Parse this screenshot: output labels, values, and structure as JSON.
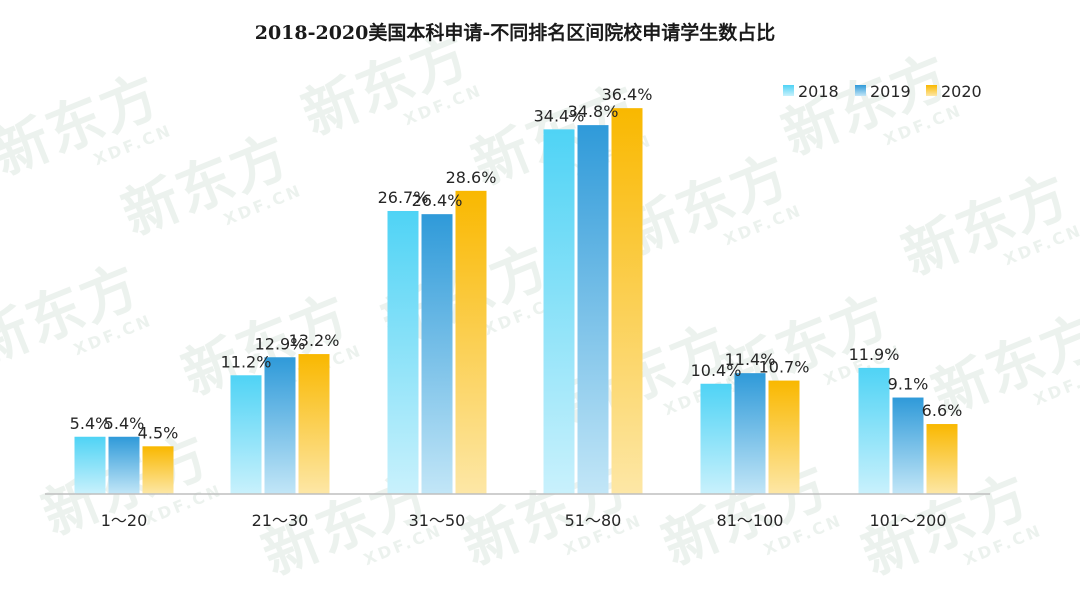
{
  "chart_data": {
    "type": "bar",
    "title": "2018-2020美国本科申请-不同排名区间院校申请学生数占比",
    "categories": [
      "1～20",
      "21～30",
      "31～50",
      "51～80",
      "81～100",
      "101～200"
    ],
    "series": [
      {
        "name": "2018",
        "values": [
          5.4,
          11.2,
          26.7,
          34.4,
          10.4,
          11.9
        ],
        "labels": [
          "5.4%",
          "11.2%",
          "26.7%",
          "34.4%",
          "10.4%",
          "11.9%"
        ],
        "colors": [
          "#4fd3f5",
          "#c9f1fc"
        ]
      },
      {
        "name": "2019",
        "values": [
          5.4,
          12.9,
          26.4,
          34.8,
          11.4,
          9.1
        ],
        "labels": [
          "5.4%",
          "12.9%",
          "26.4%",
          "34.8%",
          "11.4%",
          "9.1%"
        ],
        "colors": [
          "#2f9ad9",
          "#c2e6f7"
        ]
      },
      {
        "name": "2020",
        "values": [
          4.5,
          13.2,
          28.6,
          36.4,
          10.7,
          6.6
        ],
        "labels": [
          "4.5%",
          "13.2%",
          "28.6%",
          "36.4%",
          "10.7%",
          "6.6%"
        ],
        "colors": [
          "#f9b800",
          "#fde7a6"
        ]
      }
    ],
    "ylim": [
      0,
      40
    ],
    "grid": false,
    "legend": "top-right",
    "xlabel": "",
    "ylabel": ""
  },
  "watermark": {
    "text": "新东方",
    "subtext": "XDF.CN"
  }
}
